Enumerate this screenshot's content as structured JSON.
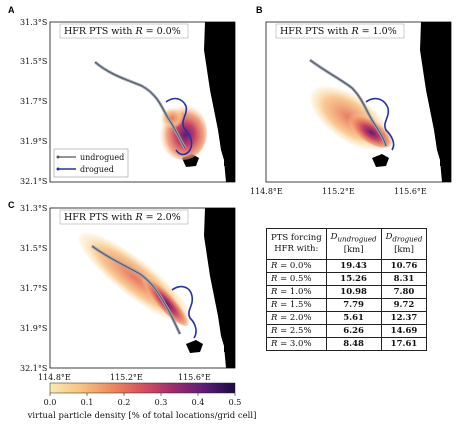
{
  "panels": [
    {
      "letter": "A",
      "title": "HFR PTS with R = 0.0%",
      "title_pre": "HFR PTS with ",
      "title_var": "R",
      "title_post": " = 0.0%"
    },
    {
      "letter": "B",
      "title": "HFR PTS with R = 1.0%",
      "title_pre": "HFR PTS with ",
      "title_var": "R",
      "title_post": " = 1.0%"
    },
    {
      "letter": "C",
      "title": "HFR PTS with R = 2.0%",
      "title_pre": "HFR PTS with ",
      "title_var": "R",
      "title_post": " = 2.0%"
    }
  ],
  "yticks": [
    "31.3°S",
    "31.5°S",
    "31.7°S",
    "31.9°S",
    "32.1°S"
  ],
  "xticks": [
    "114.8°E",
    "115.2°E",
    "115.6°E"
  ],
  "legend": [
    {
      "label": "undrogued",
      "color": "#555555"
    },
    {
      "label": "drogued",
      "color": "#2233aa"
    }
  ],
  "colorbar": {
    "ticks": [
      "0.0",
      "0.1",
      "0.2",
      "0.3",
      "0.4",
      "0.5"
    ],
    "label": "virtual particle density [% of total locations/grid cell]",
    "colors": [
      "#fbe9b0",
      "#f9c27d",
      "#ef8a5a",
      "#d84f5f",
      "#a02a6e",
      "#5e1c78",
      "#1c0a45"
    ]
  },
  "table": {
    "header_col1_line1": "PTS forcing",
    "header_col1_line2": "HFR with:",
    "header_col2_sym": "D",
    "header_col2_sub": "undrogued",
    "header_col2_unit": "[km]",
    "header_col3_sym": "D",
    "header_col3_sub": "drogued",
    "header_col3_unit": "[km]",
    "rows": [
      {
        "r": "R = 0.0%",
        "r_var": "R",
        "r_val": " = 0.0%",
        "und": "19.43",
        "dro": "10.76"
      },
      {
        "r": "R = 0.5%",
        "r_var": "R",
        "r_val": " = 0.5%",
        "und": "15.26",
        "dro": "8.31"
      },
      {
        "r": "R = 1.0%",
        "r_var": "R",
        "r_val": " = 1.0%",
        "und": "10.98",
        "dro": "7.80"
      },
      {
        "r": "R = 1.5%",
        "r_var": "R",
        "r_val": " = 1.5%",
        "und": "7.79",
        "dro": "9.72"
      },
      {
        "r": "R = 2.0%",
        "r_var": "R",
        "r_val": " = 2.0%",
        "und": "5.61",
        "dro": "12.37"
      },
      {
        "r": "R = 2.5%",
        "r_var": "R",
        "r_val": " = 2.5%",
        "und": "6.26",
        "dro": "14.69"
      },
      {
        "r": "R = 3.0%",
        "r_var": "R",
        "r_val": " = 3.0%",
        "und": "8.48",
        "dro": "17.61"
      }
    ]
  },
  "chart_data": [
    {
      "type": "heatmap",
      "title": "HFR PTS with R = 0.0%",
      "xlim": [
        114.8,
        115.8
      ],
      "ylim": [
        -32.1,
        -31.3
      ],
      "clim": [
        0.0,
        0.5
      ],
      "x_ticks": [
        114.8,
        115.2,
        115.6
      ],
      "y_ticks": [
        -31.3,
        -31.5,
        -31.7,
        -31.9,
        -32.1
      ],
      "legend": [
        "undrogued",
        "drogued"
      ],
      "legend_position": "lower-left"
    },
    {
      "type": "heatmap",
      "title": "HFR PTS with R = 1.0%",
      "xlim": [
        114.8,
        115.8
      ],
      "ylim": [
        -32.1,
        -31.3
      ],
      "clim": [
        0.0,
        0.5
      ],
      "x_ticks": [
        114.8,
        115.2,
        115.6
      ],
      "y_ticks": [
        -31.3,
        -31.5,
        -31.7,
        -31.9,
        -32.1
      ]
    },
    {
      "type": "heatmap",
      "title": "HFR PTS with R = 2.0%",
      "xlim": [
        114.8,
        115.8
      ],
      "ylim": [
        -32.1,
        -31.3
      ],
      "clim": [
        0.0,
        0.5
      ],
      "x_ticks": [
        114.8,
        115.2,
        115.6
      ],
      "y_ticks": [
        -31.3,
        -31.5,
        -31.7,
        -31.9,
        -32.1
      ]
    },
    {
      "type": "table",
      "columns": [
        "PTS forcing HFR with:",
        "D_undrogued [km]",
        "D_drogued [km]"
      ],
      "rows": [
        [
          "R = 0.0%",
          19.43,
          10.76
        ],
        [
          "R = 0.5%",
          15.26,
          8.31
        ],
        [
          "R = 1.0%",
          10.98,
          7.8
        ],
        [
          "R = 1.5%",
          7.79,
          9.72
        ],
        [
          "R = 2.0%",
          5.61,
          12.37
        ],
        [
          "R = 2.5%",
          6.26,
          14.69
        ],
        [
          "R = 3.0%",
          8.48,
          17.61
        ]
      ]
    }
  ]
}
